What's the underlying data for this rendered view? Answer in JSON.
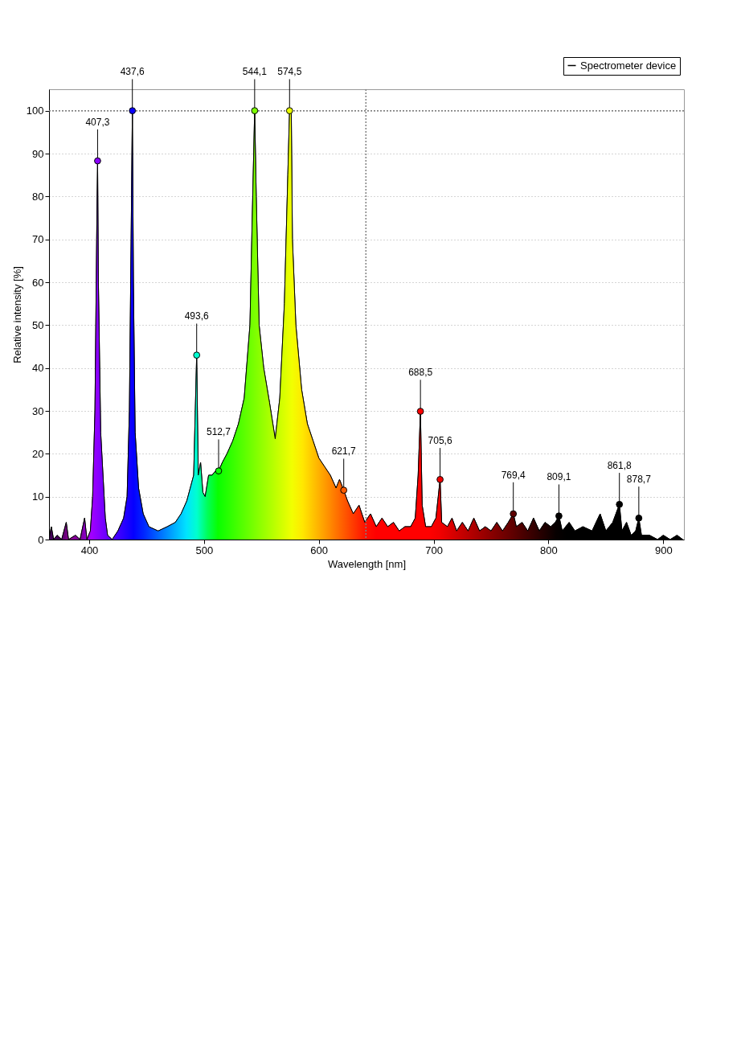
{
  "chart_data": {
    "type": "area",
    "xlabel": "Wavelength [nm]",
    "ylabel": "Relative intensity [%]",
    "x": [
      365,
      367,
      369,
      372,
      376,
      380,
      382,
      388,
      392,
      396,
      398,
      401,
      403,
      405,
      406.5,
      407.3,
      408,
      410,
      412,
      414,
      416,
      420,
      425,
      430,
      433,
      435,
      436.5,
      437.6,
      438.5,
      440,
      443,
      447,
      452,
      460,
      468,
      475,
      480,
      485,
      488,
      491,
      493.6,
      495,
      497,
      499,
      501,
      504,
      507,
      510,
      512.7,
      516,
      520,
      525,
      530,
      535,
      540,
      542,
      544.1,
      545.5,
      548,
      552,
      557,
      562,
      566,
      570,
      573,
      574.5,
      576,
      577,
      580,
      585,
      590,
      595,
      600,
      605,
      610,
      615,
      618,
      621.7,
      625,
      630,
      635,
      640,
      645,
      650,
      655,
      660,
      665,
      670,
      675,
      680,
      684,
      686.5,
      688.5,
      690,
      693,
      698,
      702,
      704,
      705.6,
      707,
      712,
      716,
      720,
      725,
      730,
      735,
      740,
      745,
      750,
      755,
      760,
      765,
      769.4,
      772,
      777,
      782,
      787,
      792,
      797,
      802,
      806,
      809.1,
      812,
      818,
      823,
      830,
      838,
      845,
      850,
      856,
      861.8,
      864,
      868,
      872,
      876,
      878.7,
      881,
      888,
      895,
      900,
      906,
      912,
      917
    ],
    "series": [
      {
        "name": "Spectrometer device",
        "color": "#000000",
        "values": [
          0,
          3,
          0,
          1,
          0,
          4,
          0,
          1,
          0,
          5,
          0,
          2,
          10,
          30,
          70,
          88.3,
          60,
          25,
          15,
          5,
          1,
          0,
          2,
          5,
          10,
          30,
          70,
          100,
          60,
          25,
          12,
          6,
          3,
          2,
          3,
          4,
          6,
          9,
          12,
          15,
          43,
          15,
          18,
          11,
          10,
          15,
          15,
          16,
          16,
          18,
          20,
          23,
          27,
          33,
          50,
          75,
          100,
          80,
          50,
          40,
          32,
          23.5,
          33,
          55,
          85,
          100,
          100,
          70,
          50,
          35,
          27,
          23,
          19,
          17,
          15,
          12,
          14,
          11.5,
          9,
          6,
          8,
          4,
          6,
          3,
          5,
          3,
          4,
          2,
          3,
          3,
          5,
          15,
          29.9,
          8,
          3,
          3,
          5,
          10,
          14,
          4,
          3,
          5,
          2,
          4,
          2,
          5,
          2,
          3,
          2,
          4,
          2,
          4,
          6,
          3,
          4,
          2,
          5,
          2,
          4,
          3,
          4,
          5.5,
          2,
          4,
          2,
          3,
          2,
          6,
          2,
          4,
          8.2,
          2,
          4,
          1,
          2,
          5,
          1,
          1,
          0,
          1,
          0,
          1,
          0
        ]
      }
    ],
    "xlim": [
      365,
      918
    ],
    "xticks": [
      400,
      500,
      600,
      700,
      800,
      900
    ],
    "ylim": [
      0,
      105
    ],
    "yticks": [
      0,
      10,
      20,
      30,
      40,
      50,
      60,
      70,
      80,
      90,
      100
    ],
    "grid": "y",
    "legend": "top right",
    "ref_lines": [
      {
        "axis": "y",
        "value": 100,
        "color": "#808080",
        "line_style": "dotted"
      },
      {
        "axis": "x",
        "value": 641,
        "color": "#808080",
        "line_style": "dotted"
      }
    ],
    "annotations": [
      {
        "text": "407,3",
        "x": 407.3,
        "y": 88.3
      },
      {
        "text": "437,6",
        "x": 437.6,
        "y": 100
      },
      {
        "text": "493,6",
        "x": 493.6,
        "y": 43
      },
      {
        "text": "512,7",
        "x": 512.7,
        "y": 16
      },
      {
        "text": "544,1",
        "x": 544.1,
        "y": 100
      },
      {
        "text": "574,5",
        "x": 574.5,
        "y": 100
      },
      {
        "text": "621,7",
        "x": 621.7,
        "y": 11.5
      },
      {
        "text": "688,5",
        "x": 688.5,
        "y": 29.9
      },
      {
        "text": "705,6",
        "x": 705.6,
        "y": 14
      },
      {
        "text": "769,4",
        "x": 769.4,
        "y": 6
      },
      {
        "text": "809,1",
        "x": 809.1,
        "y": 5.5
      },
      {
        "text": "861,8",
        "x": 861.8,
        "y": 8.2
      },
      {
        "text": "878,7",
        "x": 878.7,
        "y": 5
      }
    ]
  }
}
